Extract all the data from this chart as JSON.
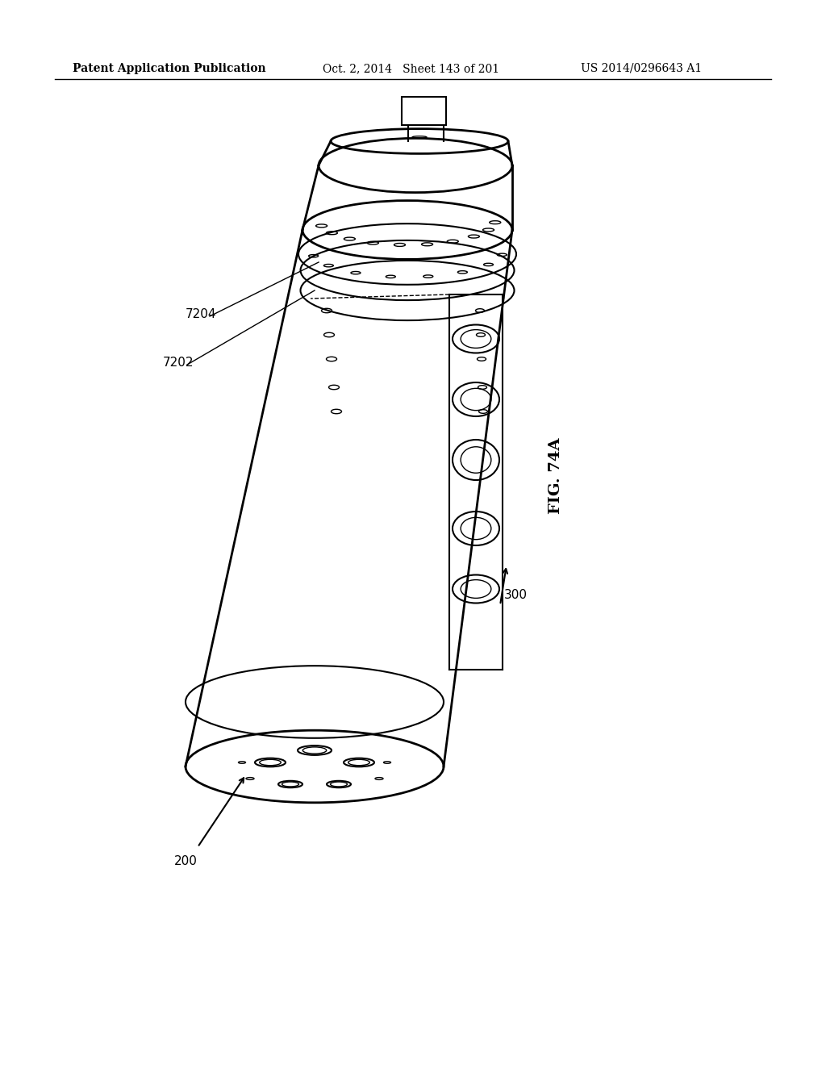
{
  "header_left": "Patent Application Publication",
  "header_middle": "Oct. 2, 2014   Sheet 143 of 201",
  "header_right": "US 2014/0296643 A1",
  "figure_label": "FIG. 74A",
  "label_200": "200",
  "label_300": "300",
  "label_7202": "7202",
  "label_7204": "7204",
  "background_color": "#ffffff",
  "line_color": "#000000",
  "header_fontsize": 10,
  "label_fontsize": 11
}
